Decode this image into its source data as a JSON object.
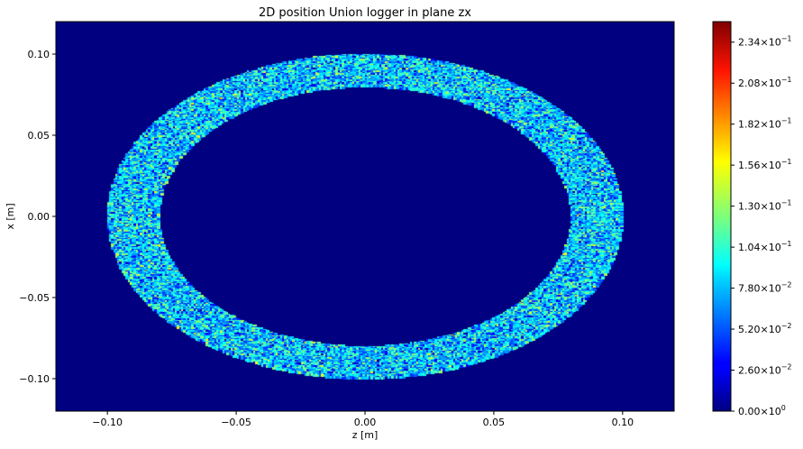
{
  "chart_data": {
    "type": "heatmap",
    "title": "2D position Union logger in plane zx",
    "xlabel": "z [m]",
    "ylabel": "x [m]",
    "xlim": [
      -0.12,
      0.12
    ],
    "ylim": [
      -0.12,
      0.12
    ],
    "x_ticks": [
      -0.1,
      -0.05,
      0.0,
      0.05,
      0.1
    ],
    "x_tick_labels": [
      "−0.10",
      "−0.05",
      "0.00",
      "0.05",
      "0.10"
    ],
    "y_ticks": [
      -0.1,
      -0.05,
      0.0,
      0.05,
      0.1
    ],
    "y_tick_labels": [
      "−0.10",
      "−0.05",
      "0.00",
      "0.05",
      "0.10"
    ],
    "colormap": "jet",
    "colorbar": {
      "range": [
        0.0,
        0.247
      ],
      "ticks": [
        0.0,
        0.026,
        0.052,
        0.078,
        0.104,
        0.13,
        0.156,
        0.182,
        0.208,
        0.234
      ],
      "tick_mantissas": [
        "0.00",
        "2.60",
        "5.20",
        "7.80",
        "1.04",
        "1.30",
        "1.56",
        "1.82",
        "2.08",
        "2.34"
      ],
      "tick_exponents": [
        "0",
        "−2",
        "−2",
        "−2",
        "−1",
        "−1",
        "−1",
        "−1",
        "−1",
        "−1"
      ]
    },
    "ring": {
      "inner_radius": 0.08,
      "outer_radius": 0.1,
      "typical_value": 0.08,
      "value_spread": 0.06
    },
    "grid": false,
    "background_value": 0.0
  }
}
